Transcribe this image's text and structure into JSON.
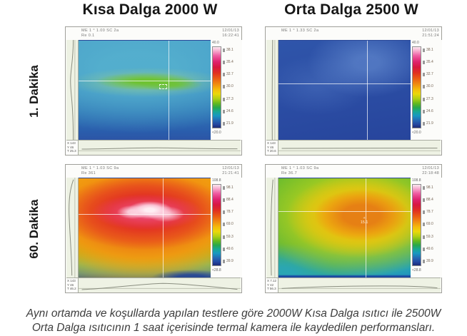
{
  "columns": [
    {
      "title": "Kısa Dalga 2000 W"
    },
    {
      "title": "Orta Dalga 2500 W"
    }
  ],
  "rows": [
    {
      "label": "1. Dakika"
    },
    {
      "label": "60. Dakika"
    }
  ],
  "caption": {
    "line1": "Aynı ortamda ve koşullarda yapılan testlere göre 2000W Kısa Dalga ısıtıcı ile 2500W",
    "line2": "Orta Dalga ısıtıcının 1 saat içerisinde termal kamera ile kaydedilen performansları."
  },
  "panels": [
    {
      "id": "kisa-dalga-1-dakika",
      "header_left_line1": "ME 1 ° 1.00 SC 2a",
      "header_left_line2": "Re 0.1",
      "header_right_line1": "12/01/13",
      "header_right_line2": "16:22:41",
      "scale_max": "40.0",
      "scale_min": "<20.0",
      "ticks": [
        "38.1",
        "35.4",
        "32.7",
        "30.0",
        "27.3",
        "24.6",
        "21.9"
      ],
      "corner": [
        "X 143",
        "Y 46",
        "T 25.3"
      ],
      "cursor_label": ""
    },
    {
      "id": "orta-dalga-1-dakika",
      "header_left_line1": "ME 1 ° 1.33 SC 2a",
      "header_left_line2": "",
      "header_right_line1": "12/01/13",
      "header_right_line2": "21:51:24",
      "scale_max": "40.0",
      "scale_min": "<20.0",
      "ticks": [
        "38.1",
        "35.4",
        "32.7",
        "30.0",
        "27.3",
        "24.6",
        "21.9"
      ],
      "corner": [
        "X 143",
        "Y 46",
        "T 20.6"
      ],
      "cursor_label": ""
    },
    {
      "id": "kisa-dalga-60-dakika",
      "header_left_line1": "ME 1 ° 1.03 SC 9a",
      "header_left_line2": "Re 361",
      "header_right_line1": "12/01/13",
      "header_right_line2": "21:21:41",
      "scale_max": "108.8",
      "scale_min": "<28.8",
      "ticks": [
        "98.1",
        "88.4",
        "78.7",
        "69.0",
        "59.3",
        "49.6",
        "39.9"
      ],
      "corner": [
        "X 143",
        "Y 46",
        "T 46.2"
      ],
      "cursor_label": ""
    },
    {
      "id": "orta-dalga-60-dakika",
      "header_left_line1": "ME 1 ° 1.03 SC 9a",
      "header_left_line2": "Re 36.7",
      "header_right_line1": "12/01/13",
      "header_right_line2": "22:18:48",
      "scale_max": "108.8",
      "scale_min": "<28.8",
      "ticks": [
        "98.1",
        "88.4",
        "78.7",
        "69.0",
        "59.3",
        "49.6",
        "39.9"
      ],
      "corner": [
        "X 7.12",
        "Y 42",
        "T 56.3"
      ],
      "cursor_label": "15.1"
    }
  ],
  "colors": {
    "scale_top": "#fce8f0",
    "scale_bottom": "#1c2c78",
    "cold_blue": "#27459c",
    "hot_core": "#fff6fa",
    "profile_bg": "#eef2e4"
  }
}
